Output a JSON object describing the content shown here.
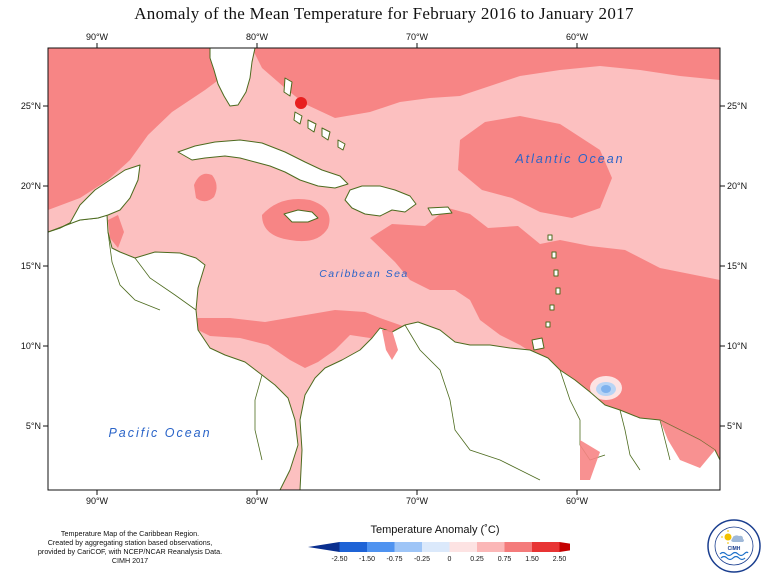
{
  "title": "Anomaly of the Mean Temperature for February 2016 to January 2017",
  "map": {
    "lon_ticks": [
      "90°W",
      "80°W",
      "70°W",
      "60°W"
    ],
    "lat_ticks": [
      "25°N",
      "20°N",
      "15°N",
      "10°N",
      "5°N"
    ],
    "labels": {
      "atlantic": "Atlantic Ocean",
      "caribbean": "Caribbean Sea",
      "pacific": "Pacific Ocean"
    }
  },
  "footnote": [
    "Temperature Map of the Caribbean Region.",
    "Created by aggregating station based observations,",
    "provided by CariCOF, with NCEP/NCAR Reanalysis Data.",
    "CIMH 2017"
  ],
  "legend": {
    "title": "Temperature Anomaly (˚C)",
    "tick_labels": [
      "-2.50",
      "-1.50",
      "-0.75",
      "-0.25",
      "0",
      "0.25",
      "0.75",
      "1.50",
      "2.50"
    ],
    "colors": [
      "#0a2f8f",
      "#1e63d6",
      "#4f93f0",
      "#9ec5f7",
      "#dbe9fb",
      "#fde3e3",
      "#fbb7b7",
      "#f47b7b",
      "#e83434",
      "#c40000"
    ]
  },
  "colors": {
    "land_fill": "#ffffff",
    "coast": "#4d6b1f",
    "anomaly_low": "#fcc0c0",
    "anomaly_mid": "#f78585",
    "anomaly_high": "#e81f1f",
    "anomaly_cool": "#7fb2ee"
  },
  "logo": {
    "text": "CIMH"
  }
}
